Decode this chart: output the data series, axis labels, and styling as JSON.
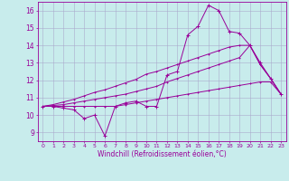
{
  "xlabel": "Windchill (Refroidissement éolien,°C)",
  "ylabel": "",
  "bg_color": "#c8ecec",
  "line_color": "#990099",
  "grid_color": "#aaaacc",
  "x_values": [
    0,
    1,
    2,
    3,
    4,
    5,
    6,
    7,
    8,
    9,
    10,
    11,
    12,
    13,
    14,
    15,
    16,
    17,
    18,
    19,
    20,
    21,
    22,
    23
  ],
  "line1": [
    10.5,
    10.5,
    10.4,
    10.3,
    9.8,
    10.0,
    8.8,
    10.5,
    10.7,
    10.8,
    10.5,
    10.5,
    12.3,
    12.5,
    14.6,
    15.1,
    16.3,
    16.0,
    14.8,
    14.7,
    14.0,
    13.0,
    12.1,
    11.2
  ],
  "line2": [
    10.5,
    10.5,
    10.5,
    10.5,
    10.5,
    10.5,
    10.5,
    10.5,
    10.6,
    10.7,
    10.8,
    10.9,
    11.0,
    11.1,
    11.2,
    11.3,
    11.4,
    11.5,
    11.6,
    11.7,
    11.8,
    11.9,
    11.9,
    11.2
  ],
  "line3": [
    10.5,
    10.55,
    10.6,
    10.7,
    10.8,
    10.9,
    11.0,
    11.1,
    11.2,
    11.35,
    11.5,
    11.65,
    11.9,
    12.1,
    12.3,
    12.5,
    12.7,
    12.9,
    13.1,
    13.3,
    14.0,
    12.9,
    12.1,
    11.2
  ],
  "line4": [
    10.5,
    10.6,
    10.75,
    10.9,
    11.1,
    11.3,
    11.45,
    11.65,
    11.85,
    12.05,
    12.35,
    12.5,
    12.7,
    12.9,
    13.1,
    13.3,
    13.5,
    13.7,
    13.9,
    14.0,
    14.0,
    12.9,
    12.1,
    11.2
  ],
  "ylim": [
    8.5,
    16.5
  ],
  "yticks": [
    9,
    10,
    11,
    12,
    13,
    14,
    15,
    16
  ],
  "xlim": [
    -0.5,
    23.5
  ]
}
